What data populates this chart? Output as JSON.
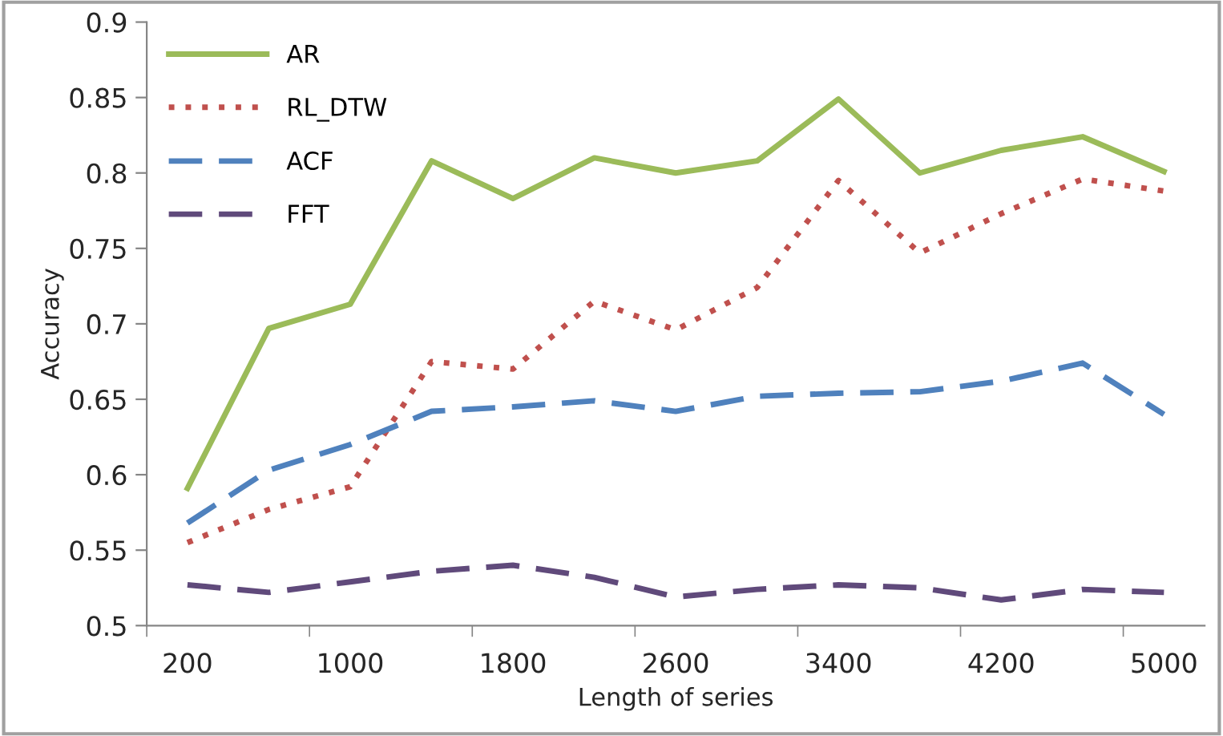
{
  "chart_data": {
    "type": "line",
    "xlabel": "Length of series",
    "ylabel": "Accuracy",
    "categories": [
      "200",
      null,
      "1000",
      null,
      "1800",
      null,
      "2600",
      null,
      "3400",
      null,
      "4200",
      null,
      "5000"
    ],
    "series": [
      {
        "name": "AR",
        "color": "#9bbb59",
        "line_style": "solid",
        "values": [
          0.591,
          0.697,
          0.713,
          0.808,
          0.783,
          0.81,
          0.8,
          0.808,
          0.849,
          0.8,
          0.815,
          0.824,
          0.801
        ]
      },
      {
        "name": "RL_DTW",
        "color": "#c0504d",
        "line_style": "dotted",
        "values": [
          0.555,
          0.577,
          0.592,
          0.675,
          0.67,
          0.715,
          0.696,
          0.724,
          0.795,
          0.747,
          0.773,
          0.796,
          0.788
        ]
      },
      {
        "name": "ACF",
        "color": "#4f81bd",
        "line_style": "dashed",
        "values": [
          0.568,
          0.603,
          0.62,
          0.642,
          0.645,
          0.649,
          0.642,
          0.652,
          0.654,
          0.655,
          0.662,
          0.674,
          0.64
        ]
      },
      {
        "name": "FFT",
        "color": "#604a7b",
        "line_style": "dashed",
        "values": [
          0.527,
          0.522,
          0.529,
          0.536,
          0.54,
          0.532,
          0.519,
          0.524,
          0.527,
          0.525,
          0.517,
          0.524,
          0.522
        ]
      }
    ],
    "ylim": [
      0.5,
      0.9
    ],
    "yticks": [
      0.5,
      0.55,
      0.6,
      0.65,
      0.7,
      0.75,
      0.8,
      0.85,
      0.9
    ],
    "grid": false,
    "legend": "top left",
    "marker": "none"
  }
}
